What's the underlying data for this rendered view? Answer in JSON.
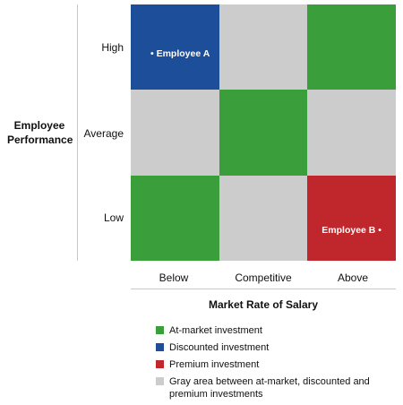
{
  "chart_data": {
    "type": "heatmap",
    "ylabel": "Employee Performance",
    "xlabel": "Market Rate of Salary",
    "x_categories": [
      "Below",
      "Competitive",
      "Above"
    ],
    "y_categories": [
      "High",
      "Average",
      "Low"
    ],
    "category_colors": {
      "at_market": "#3a9e3a",
      "discounted": "#1c4e9a",
      "premium": "#c0272d",
      "gray": "#cccccc"
    },
    "cells": [
      {
        "row": "High",
        "col": "Below",
        "category": "discounted",
        "label": "• Employee A"
      },
      {
        "row": "High",
        "col": "Competitive",
        "category": "gray",
        "label": ""
      },
      {
        "row": "High",
        "col": "Above",
        "category": "at_market",
        "label": ""
      },
      {
        "row": "Average",
        "col": "Below",
        "category": "gray",
        "label": ""
      },
      {
        "row": "Average",
        "col": "Competitive",
        "category": "at_market",
        "label": ""
      },
      {
        "row": "Average",
        "col": "Above",
        "category": "gray",
        "label": ""
      },
      {
        "row": "Low",
        "col": "Below",
        "category": "at_market",
        "label": ""
      },
      {
        "row": "Low",
        "col": "Competitive",
        "category": "gray",
        "label": ""
      },
      {
        "row": "Low",
        "col": "Above",
        "category": "premium",
        "label": "Employee B •"
      }
    ],
    "legend": [
      {
        "category": "at_market",
        "label": "At-market investment"
      },
      {
        "category": "discounted",
        "label": "Discounted investment"
      },
      {
        "category": "premium",
        "label": "Premium investment"
      },
      {
        "category": "gray",
        "label": "Gray area between at-market, discounted and premium investments"
      }
    ],
    "legend_position": "bottom"
  }
}
